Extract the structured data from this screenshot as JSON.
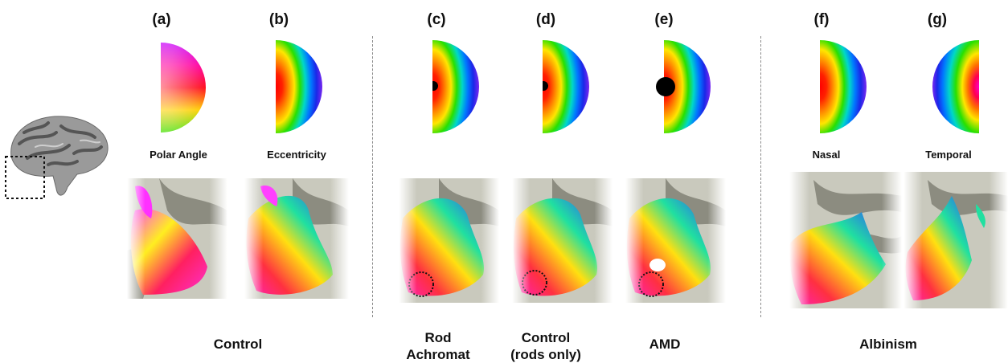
{
  "panels": [
    {
      "letter": "(a)",
      "sublabel": "Polar Angle"
    },
    {
      "letter": "(b)",
      "sublabel": "Eccentricity"
    },
    {
      "letter": "(c)",
      "sublabel": ""
    },
    {
      "letter": "(d)",
      "sublabel": ""
    },
    {
      "letter": "(e)",
      "sublabel": ""
    },
    {
      "letter": "(f)",
      "sublabel": "Nasal"
    },
    {
      "letter": "(g)",
      "sublabel": "Temporal"
    }
  ],
  "groups": {
    "control": "Control",
    "rod_line1": "Rod",
    "rod_line2": "Achromat",
    "rods_line1": "Control",
    "rods_line2": "(rods only)",
    "amd": "AMD",
    "albinism": "Albinism"
  },
  "icons": {
    "brain": "brain-surface-icon",
    "wedge": "polar-angle-colormap-icon",
    "ring": "eccentricity-colormap-icon",
    "scotoma": "scotoma-dot-icon"
  },
  "colors": {
    "cortex_light": "#c9c9bd",
    "cortex_dark": "#8c8c80",
    "divider": "#8a8a8a"
  }
}
